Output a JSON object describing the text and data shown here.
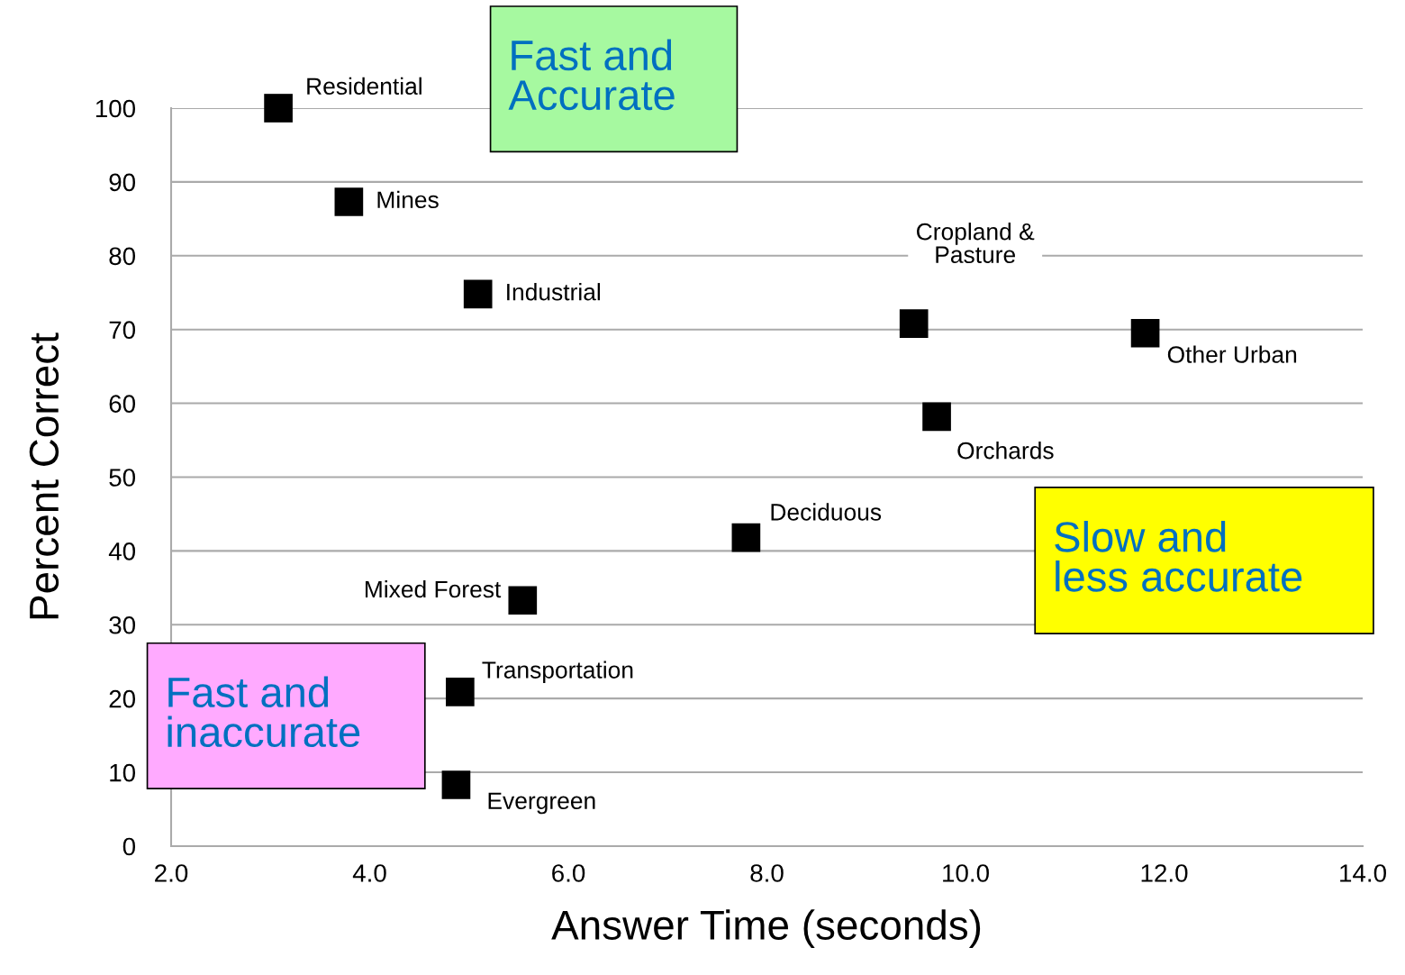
{
  "chart_data": {
    "type": "scatter",
    "xlabel": "Answer Time (seconds)",
    "ylabel": "Percent Correct",
    "x": [
      3.08,
      3.79,
      5.09,
      9.48,
      11.81,
      9.71,
      7.79,
      5.54,
      4.91,
      4.87
    ],
    "series": [
      {
        "color": "#000000",
        "values": [
          100,
          87.3,
          74.8,
          70.8,
          69.5,
          58.2,
          41.8,
          33.3,
          20.9,
          8.3
        ]
      }
    ],
    "marker": "square",
    "grid": "y",
    "legend": false,
    "xlim": [
      2,
      14
    ],
    "xticks": [
      {
        "value": 2,
        "label": "2.0"
      },
      {
        "value": 4,
        "label": "4.0"
      },
      {
        "value": 6,
        "label": "6.0"
      },
      {
        "value": 8,
        "label": "8.0"
      },
      {
        "value": 10,
        "label": "10.0"
      },
      {
        "value": 12,
        "label": "12.0"
      },
      {
        "value": 14,
        "label": "14.0"
      }
    ],
    "ylim": [
      0,
      100
    ],
    "yticks": [
      0,
      10,
      20,
      30,
      40,
      50,
      60,
      70,
      80,
      90,
      100
    ],
    "annotations": [
      {
        "text": "Residential",
        "x": 3.08,
        "y": 100
      },
      {
        "text": "Mines",
        "x": 3.79,
        "y": 87.3
      },
      {
        "text": "Industrial",
        "x": 5.09,
        "y": 74.8
      },
      {
        "text": "Cropland &\nPasture",
        "x": 9.48,
        "y": 70.8
      },
      {
        "text": "Other Urban",
        "x": 11.81,
        "y": 69.5
      },
      {
        "text": "Orchards",
        "x": 9.71,
        "y": 58.2
      },
      {
        "text": "Deciduous",
        "x": 7.79,
        "y": 41.8
      },
      {
        "text": "Mixed Forest",
        "x": 5.54,
        "y": 33.3
      },
      {
        "text": "Transportation",
        "x": 4.91,
        "y": 20.9
      },
      {
        "text": "Evergreen",
        "x": 4.87,
        "y": 8.3
      },
      "Fast and\nAccurate",
      "Slow and\nless accurate",
      "Fast and\ninaccurate"
    ]
  }
}
